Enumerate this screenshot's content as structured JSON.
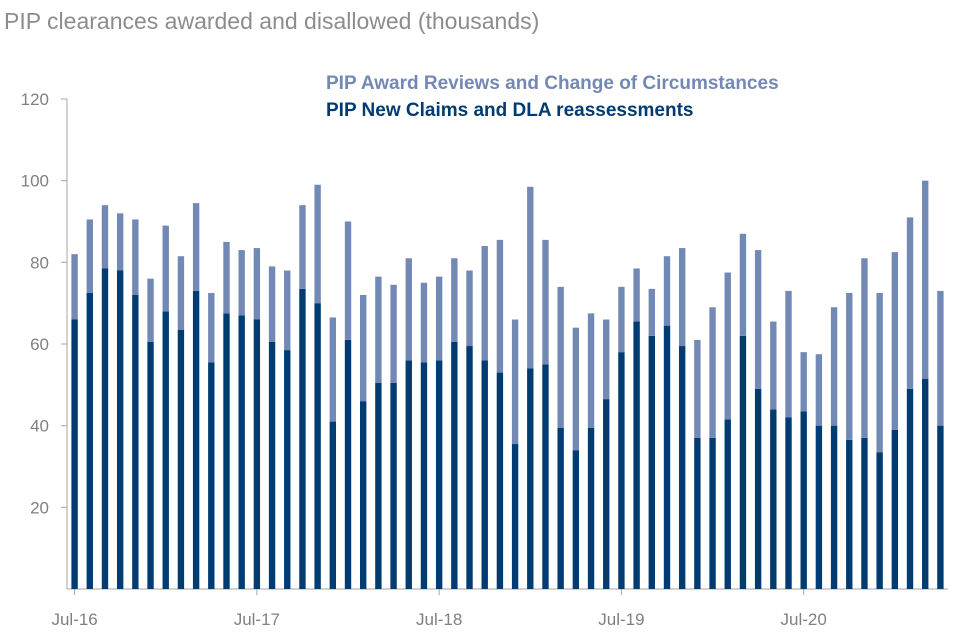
{
  "chart_data": {
    "type": "bar",
    "stacked": true,
    "title": "PIP clearances awarded and disallowed (thousands)",
    "xlabel": "",
    "ylabel": "",
    "ylim": [
      0,
      120
    ],
    "yticks": [
      20,
      40,
      60,
      80,
      100,
      120
    ],
    "grid": false,
    "legend_position": "top-right",
    "x_tick_labels": [
      {
        "index": 0,
        "label": "Jul-16"
      },
      {
        "index": 12,
        "label": "Jul-17"
      },
      {
        "index": 24,
        "label": "Jul-18"
      },
      {
        "index": 36,
        "label": "Jul-19"
      },
      {
        "index": 48,
        "label": "Jul-20"
      }
    ],
    "series": [
      {
        "name": "PIP New Claims and DLA reassessments",
        "color": "#003c71",
        "values": [
          66,
          72.5,
          78.5,
          78,
          72,
          60.5,
          68,
          63.5,
          73,
          55.5,
          67.5,
          67,
          66,
          60.5,
          58.5,
          73.5,
          70,
          41,
          61,
          46,
          50.5,
          50.5,
          56,
          55.5,
          56,
          60.5,
          59.5,
          56,
          53,
          35.5,
          54,
          55,
          39.5,
          34,
          39.5,
          46.5,
          58,
          65.5,
          62,
          64.5,
          59.5,
          37,
          37,
          41.5,
          62,
          49,
          44,
          42,
          43.5,
          40,
          40,
          36.5,
          37,
          33.5,
          39,
          49,
          51.5,
          40
        ]
      },
      {
        "name": "PIP Award Reviews and Change of Circumstances",
        "color": "#7389b5",
        "values": [
          16,
          18,
          15.5,
          14,
          18.5,
          15.5,
          21,
          18,
          21.5,
          17,
          17.5,
          16,
          17.5,
          18.5,
          19.5,
          20.5,
          29,
          25.5,
          29,
          26,
          26,
          24,
          25,
          19.5,
          20.5,
          20.5,
          18.5,
          28,
          32.5,
          30.5,
          44.5,
          30.5,
          34.5,
          30,
          28,
          19.5,
          16,
          13,
          11.5,
          17,
          24,
          24,
          32,
          36,
          25,
          34,
          21.5,
          31,
          14.5,
          17.5,
          29,
          36,
          44,
          39,
          43.5,
          42,
          48.5,
          33
        ]
      }
    ]
  }
}
